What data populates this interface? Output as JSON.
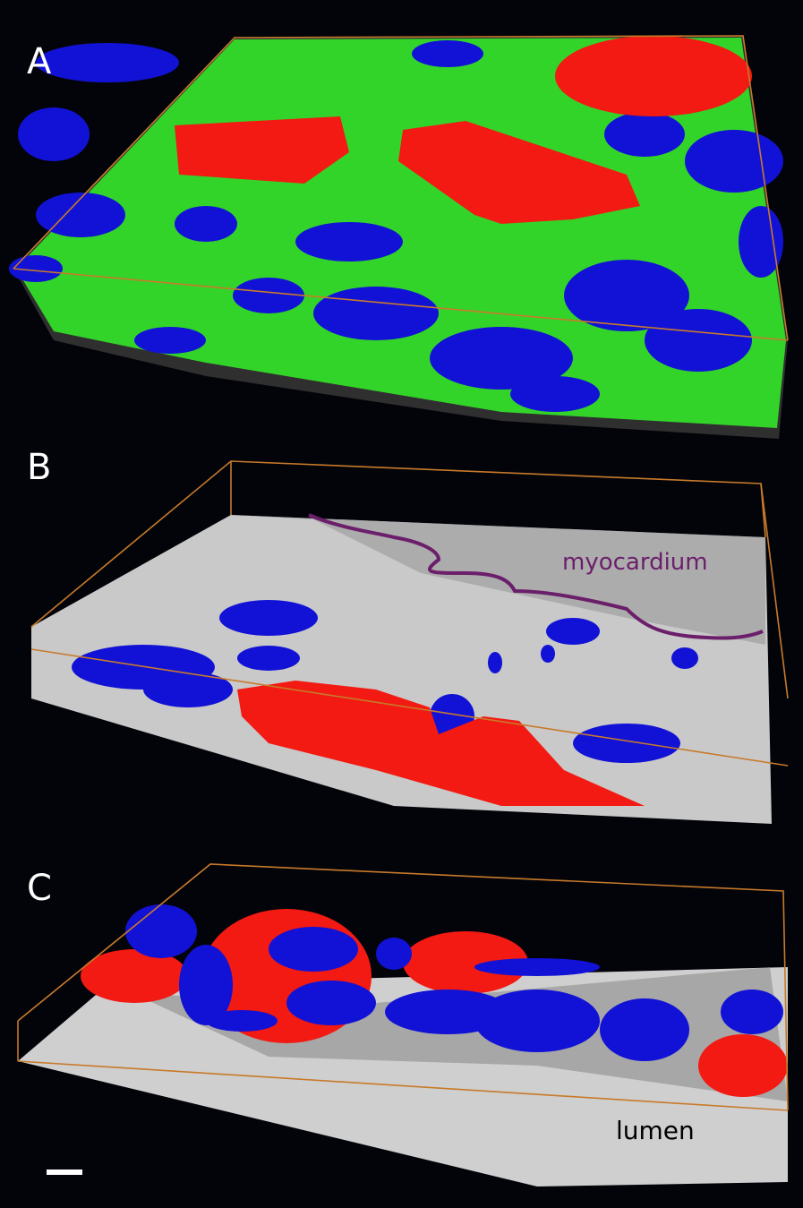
{
  "panels": [
    {
      "label": "A"
    },
    {
      "label": "B",
      "annotation": "myocardium"
    },
    {
      "label": "C",
      "annotation": "lumen"
    }
  ]
}
